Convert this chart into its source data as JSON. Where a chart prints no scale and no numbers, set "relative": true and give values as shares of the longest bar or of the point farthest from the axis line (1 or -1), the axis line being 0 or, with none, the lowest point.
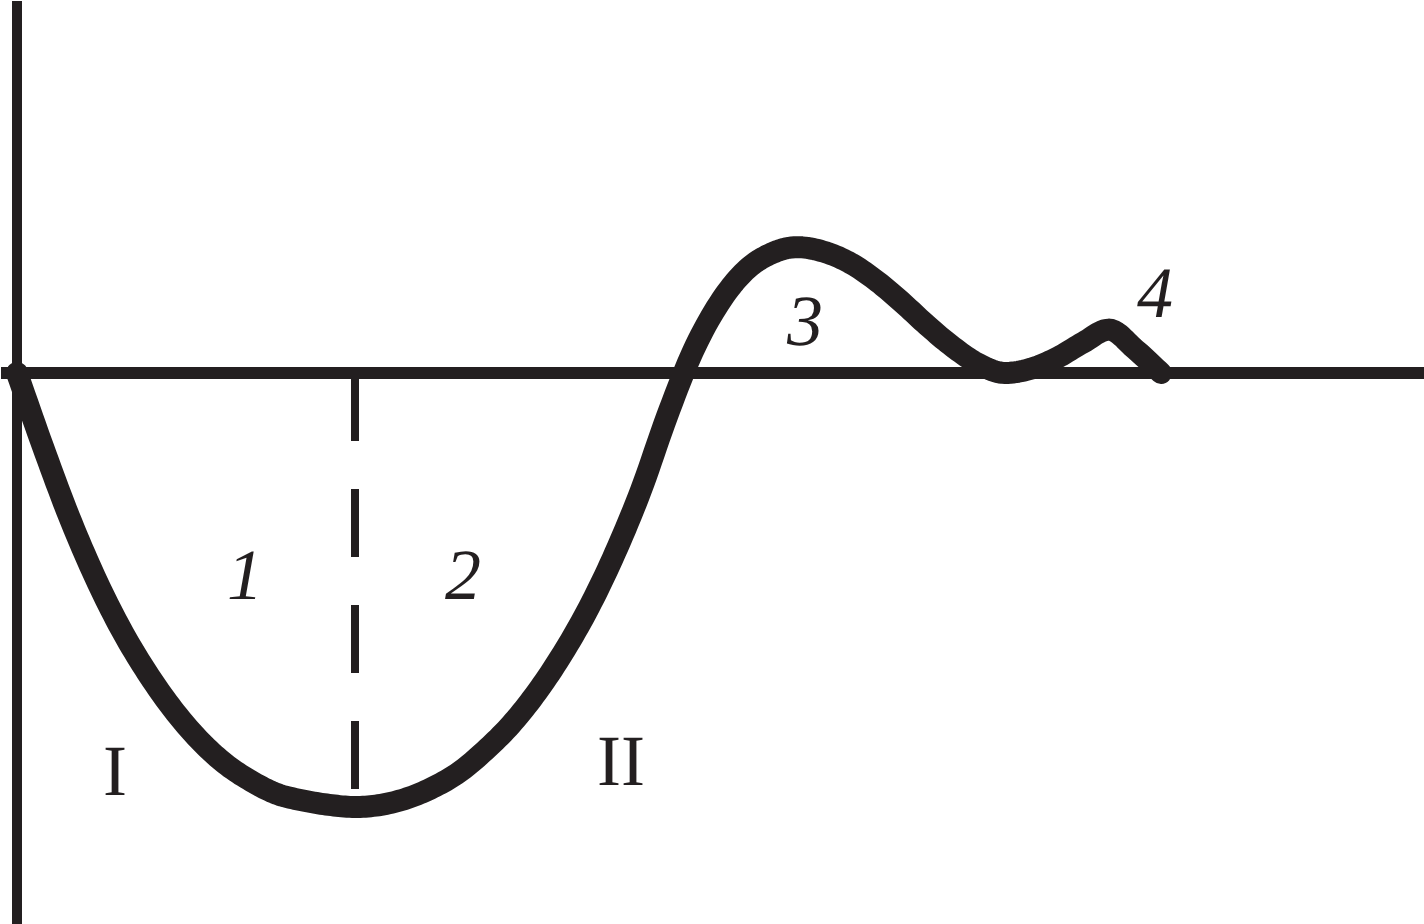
{
  "chart_data": {
    "type": "line",
    "relative": true,
    "categories": [
      null,
      null,
      null,
      null,
      null,
      null,
      null,
      null,
      null,
      null,
      null,
      null,
      null,
      null,
      null,
      null,
      null,
      null,
      null,
      null,
      null,
      null,
      null,
      null,
      null,
      null,
      null,
      null,
      null,
      null,
      null,
      null,
      null,
      null,
      null,
      null,
      null,
      null,
      null,
      null,
      null,
      null,
      null,
      null,
      null
    ],
    "series": [
      {
        "color": "#231f20",
        "values": [
          0,
          -0.17,
          -0.33,
          -0.47,
          -0.59,
          -0.69,
          -0.775,
          -0.845,
          -0.9,
          -0.94,
          -0.97,
          -0.985,
          -0.995,
          -1,
          -0.995,
          -0.98,
          -0.955,
          -0.92,
          -0.87,
          -0.81,
          -0.735,
          -0.645,
          -0.54,
          -0.415,
          -0.27,
          -0.1,
          0.05,
          0.16,
          0.235,
          0.275,
          0.29,
          0.28,
          0.255,
          0.215,
          0.165,
          0.11,
          0.06,
          0.02,
          0,
          0.01,
          0.035,
          0.07,
          0.1,
          0.055,
          0
        ]
      }
    ],
    "annotations": [
      "1",
      "2",
      "3",
      "4",
      "I",
      "II"
    ]
  }
}
